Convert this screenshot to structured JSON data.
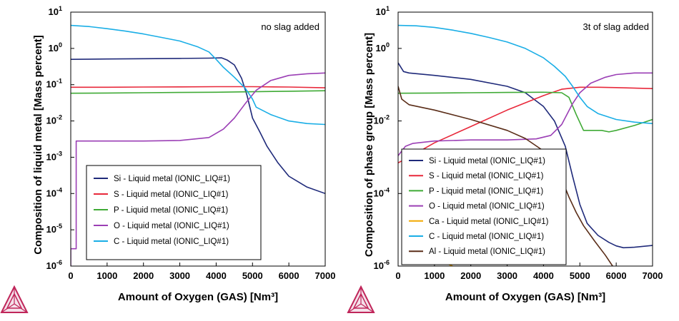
{
  "chart_data": [
    {
      "type": "line",
      "annotation": "no slag added",
      "xlabel": "Amount of Oxygen (GAS) [Nm³]",
      "ylabel": "Composition of liquid metal [Mass percent]",
      "x_ticks": [
        0,
        1000,
        2000,
        3000,
        4000,
        5000,
        6000,
        7000
      ],
      "y_scale": "log",
      "y_tick_exponents": [
        1,
        0,
        -1,
        -2,
        -3,
        -4,
        -5,
        -6
      ],
      "y_ticks": [
        10,
        1,
        0.1,
        0.01,
        0.001,
        0.0001,
        1e-05,
        1e-06
      ],
      "xlim": [
        0,
        7000
      ],
      "ylim": [
        1e-06,
        10
      ],
      "grid": false,
      "legend_position": "bottom-left",
      "series": [
        {
          "name": "Si - Liquid metal (IONIC_LIQ#1)",
          "color": "#1f2a7a",
          "x": [
            0,
            1000,
            2000,
            3000,
            3800,
            4150,
            4300,
            4500,
            4700,
            4850,
            5000,
            5200,
            5400,
            5700,
            6000,
            6500,
            7000
          ],
          "y": [
            0.5,
            0.51,
            0.52,
            0.53,
            0.54,
            0.55,
            0.48,
            0.35,
            0.15,
            0.05,
            0.012,
            0.005,
            0.002,
            0.0007,
            0.0003,
            0.00015,
            0.0001
          ]
        },
        {
          "name": "S - Liquid metal (IONIC_LIQ#1)",
          "color": "#e8283a",
          "x": [
            0,
            1000,
            2000,
            3000,
            4000,
            5000,
            6000,
            7000
          ],
          "y": [
            0.085,
            0.085,
            0.086,
            0.087,
            0.088,
            0.088,
            0.086,
            0.082
          ]
        },
        {
          "name": "P - Liquid metal (IONIC_LIQ#1)",
          "color": "#3faa35",
          "x": [
            0,
            1000,
            2000,
            3000,
            4000,
            5000,
            6000,
            7000
          ],
          "y": [
            0.058,
            0.059,
            0.06,
            0.061,
            0.062,
            0.064,
            0.066,
            0.068
          ]
        },
        {
          "name": "O - Liquid metal (IONIC_LIQ#1)",
          "color": "#9b3fb5",
          "x": [
            0,
            0,
            150,
            150,
            1000,
            2000,
            3000,
            3800,
            4200,
            4500,
            4800,
            5100,
            5500,
            6000,
            6500,
            7000
          ],
          "y": [
            1e-06,
            3e-06,
            3e-06,
            0.0028,
            0.0028,
            0.0028,
            0.0029,
            0.0035,
            0.006,
            0.012,
            0.03,
            0.07,
            0.13,
            0.18,
            0.2,
            0.21
          ]
        },
        {
          "name": "C - Liquid metal (IONIC_LIQ#1)",
          "color": "#1aaee6",
          "x": [
            0,
            500,
            1000,
            1500,
            2000,
            2500,
            3000,
            3500,
            3800,
            4000,
            4200,
            4500,
            4800,
            5000,
            5100,
            5500,
            6000,
            6500,
            7000
          ],
          "y": [
            4.3,
            4.0,
            3.5,
            3.0,
            2.5,
            2.0,
            1.6,
            1.1,
            0.8,
            0.5,
            0.3,
            0.16,
            0.08,
            0.04,
            0.024,
            0.015,
            0.01,
            0.0085,
            0.008
          ]
        }
      ]
    },
    {
      "type": "line",
      "annotation": "3t of slag added",
      "xlabel": "Amount of Oxygen (GAS) [Nm³]",
      "ylabel": "Composition of phase group [Mass percent]",
      "x_ticks": [
        0,
        1000,
        2000,
        3000,
        4000,
        5000,
        6000,
        7000
      ],
      "y_scale": "log",
      "y_tick_exponents": [
        1,
        0,
        -2,
        -4,
        -6
      ],
      "y_ticks": [
        10,
        1,
        0.01,
        0.0001,
        1e-06
      ],
      "xlim": [
        0,
        7000
      ],
      "ylim": [
        1e-06,
        10
      ],
      "grid": false,
      "legend_position": "bottom-left",
      "series": [
        {
          "name": "Si - Liquid metal (IONIC_LIQ#1)",
          "color": "#1f2a7a",
          "x": [
            0,
            150,
            300,
            1000,
            2000,
            3000,
            3500,
            4000,
            4300,
            4600,
            4800,
            5000,
            5200,
            5500,
            5800,
            6000,
            6200,
            6500,
            7000
          ],
          "y": [
            0.4,
            0.23,
            0.21,
            0.18,
            0.14,
            0.09,
            0.06,
            0.025,
            0.01,
            0.002,
            0.0003,
            5e-05,
            1.5e-05,
            7e-06,
            4.5e-06,
            3.6e-06,
            3.2e-06,
            3.3e-06,
            3.7e-06
          ]
        },
        {
          "name": "S - Liquid metal (IONIC_LIQ#1)",
          "color": "#e8283a",
          "x": [
            0,
            300,
            1000,
            2000,
            3000,
            4000,
            4500,
            5000,
            5500,
            6000,
            7000
          ],
          "y": [
            0.0007,
            0.001,
            0.0025,
            0.007,
            0.02,
            0.05,
            0.075,
            0.085,
            0.085,
            0.083,
            0.078
          ]
        },
        {
          "name": "P - Liquid metal (IONIC_LIQ#1)",
          "color": "#3faa35",
          "x": [
            0,
            1000,
            2000,
            3000,
            4000,
            4500,
            4700,
            4900,
            5100,
            5300,
            5600,
            5800,
            6000,
            6500,
            7000
          ],
          "y": [
            0.058,
            0.059,
            0.06,
            0.061,
            0.062,
            0.06,
            0.045,
            0.015,
            0.0055,
            0.0055,
            0.0055,
            0.005,
            0.0055,
            0.0075,
            0.011
          ]
        },
        {
          "name": "O - Liquid metal (IONIC_LIQ#1)",
          "color": "#9b3fb5",
          "x": [
            0,
            200,
            400,
            1000,
            2000,
            3000,
            3800,
            4200,
            4500,
            4800,
            5000,
            5300,
            5700,
            6000,
            6500,
            7000
          ],
          "y": [
            0.0011,
            0.002,
            0.0024,
            0.0028,
            0.003,
            0.003,
            0.0032,
            0.004,
            0.008,
            0.03,
            0.06,
            0.11,
            0.16,
            0.19,
            0.21,
            0.21
          ]
        },
        {
          "name": "Ca - Liquid metal (IONIC_LIQ#1)",
          "color": "#f2a900",
          "x": [
            1300,
            1400,
            1500
          ],
          "y": [
            1.3e-06,
            1.1e-06,
            1e-06
          ]
        },
        {
          "name": "C - Liquid metal (IONIC_LIQ#1)",
          "color": "#1aaee6",
          "x": [
            0,
            500,
            1000,
            1500,
            2000,
            2500,
            3000,
            3500,
            4000,
            4300,
            4600,
            4800,
            5000,
            5200,
            5500,
            6000,
            6500,
            7000
          ],
          "y": [
            4.3,
            4.2,
            3.8,
            3.2,
            2.6,
            2.0,
            1.5,
            1.0,
            0.55,
            0.32,
            0.17,
            0.09,
            0.045,
            0.025,
            0.016,
            0.011,
            0.0093,
            0.0085
          ]
        },
        {
          "name": "Al - Liquid metal (IONIC_LIQ#1)",
          "color": "#5a2d18",
          "x": [
            0,
            100,
            300,
            1000,
            2000,
            3000,
            3500,
            4000,
            4300,
            4500,
            4700,
            4900,
            5100,
            5400,
            5700,
            5900
          ],
          "y": [
            0.09,
            0.04,
            0.028,
            0.02,
            0.011,
            0.0055,
            0.0033,
            0.0015,
            0.0007,
            0.00025,
            8e-05,
            3e-05,
            1.3e-05,
            5e-06,
            2e-06,
            1e-06
          ]
        }
      ]
    }
  ]
}
